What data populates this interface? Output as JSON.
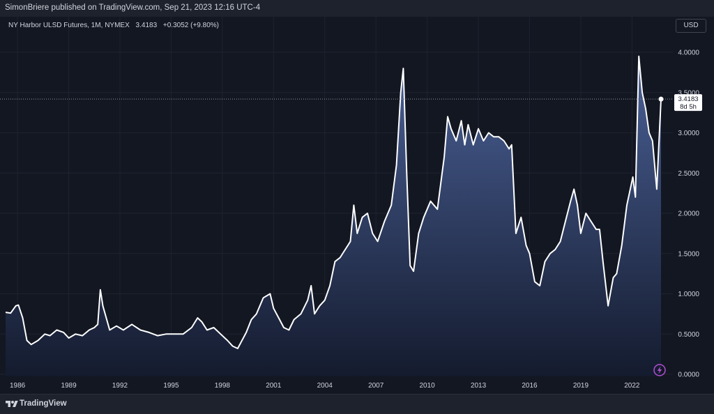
{
  "header": {
    "publisher_text": "SimonBriere published on TradingView.com, Sep 21, 2023 12:16 UTC-4"
  },
  "legend": {
    "symbol": "NY Harbor ULSD Futures, 1M, NYMEX",
    "last": "3.4183",
    "change": "+0.3052 (+9.80%)"
  },
  "price_scale": {
    "currency": "USD",
    "last_price_label": "3.4183",
    "countdown_label": "8d 5h"
  },
  "footer": {
    "brand": "TradingView"
  },
  "colors": {
    "background": "#131722",
    "line": "#ffffff",
    "fill_top": "#4a6096",
    "fill_bottom": "#141b2e",
    "grid": "#1f2330",
    "lightning": "#b44fd6"
  },
  "chart_data": {
    "type": "area",
    "title": "",
    "xlabel": "",
    "ylabel": "",
    "ylim": [
      0,
      4.2
    ],
    "x_range": [
      1985.3,
      2024.2
    ],
    "grid": true,
    "y_ticks": [
      "0.0000",
      "0.5000",
      "1.0000",
      "1.5000",
      "2.0000",
      "2.5000",
      "3.0000",
      "3.5000",
      "4.0000"
    ],
    "x_ticks": [
      "1986",
      "1989",
      "1992",
      "1995",
      "1998",
      "2001",
      "2004",
      "2007",
      "2010",
      "2013",
      "2016",
      "2019",
      "2022"
    ],
    "last_value": 3.4183,
    "series": [
      {
        "x": [
          1985.3,
          1985.6,
          1985.9,
          1986.05,
          1986.3,
          1986.55,
          1986.8,
          1987.2,
          1987.6,
          1987.9,
          1988.3,
          1988.7,
          1989.0,
          1989.4,
          1989.8,
          1990.2,
          1990.5,
          1990.7,
          1990.85,
          1991.0,
          1991.4,
          1991.8,
          1992.2,
          1992.7,
          1993.2,
          1993.7,
          1994.2,
          1994.7,
          1995.2,
          1995.7,
          1996.2,
          1996.55,
          1996.8,
          1997.1,
          1997.5,
          1997.9,
          1998.3,
          1998.6,
          1998.9,
          1999.1,
          1999.4,
          1999.7,
          2000.0,
          2000.4,
          2000.8,
          2001.0,
          2001.3,
          2001.6,
          2001.9,
          2002.2,
          2002.6,
          2003.0,
          2003.2,
          2003.4,
          2003.7,
          2004.0,
          2004.3,
          2004.6,
          2004.9,
          2005.2,
          2005.5,
          2005.7,
          2005.9,
          2006.2,
          2006.5,
          2006.8,
          2007.1,
          2007.5,
          2007.9,
          2008.2,
          2008.45,
          2008.6,
          2008.8,
          2009.0,
          2009.2,
          2009.5,
          2009.8,
          2010.2,
          2010.6,
          2011.0,
          2011.2,
          2011.4,
          2011.7,
          2012.0,
          2012.2,
          2012.4,
          2012.7,
          2013.0,
          2013.3,
          2013.6,
          2013.9,
          2014.2,
          2014.5,
          2014.8,
          2014.95,
          2015.2,
          2015.5,
          2015.8,
          2016.0,
          2016.3,
          2016.6,
          2016.9,
          2017.2,
          2017.5,
          2017.8,
          2018.1,
          2018.4,
          2018.6,
          2018.8,
          2019.0,
          2019.3,
          2019.6,
          2019.9,
          2020.1,
          2020.3,
          2020.6,
          2020.9,
          2021.1,
          2021.4,
          2021.7,
          2021.9,
          2022.05,
          2022.2,
          2022.4,
          2022.6,
          2022.8,
          2023.0,
          2023.2,
          2023.45,
          2023.7
        ],
        "values": [
          0.77,
          0.76,
          0.85,
          0.86,
          0.7,
          0.42,
          0.37,
          0.42,
          0.5,
          0.48,
          0.55,
          0.52,
          0.45,
          0.5,
          0.48,
          0.55,
          0.58,
          0.62,
          1.05,
          0.85,
          0.55,
          0.6,
          0.55,
          0.62,
          0.55,
          0.52,
          0.48,
          0.5,
          0.5,
          0.5,
          0.58,
          0.7,
          0.65,
          0.55,
          0.58,
          0.5,
          0.42,
          0.35,
          0.32,
          0.4,
          0.52,
          0.68,
          0.75,
          0.95,
          1.0,
          0.82,
          0.7,
          0.58,
          0.55,
          0.68,
          0.75,
          0.92,
          1.1,
          0.75,
          0.85,
          0.92,
          1.1,
          1.4,
          1.45,
          1.55,
          1.65,
          2.1,
          1.75,
          1.95,
          2.0,
          1.75,
          1.65,
          1.9,
          2.1,
          2.6,
          3.5,
          3.8,
          2.5,
          1.35,
          1.28,
          1.75,
          1.95,
          2.15,
          2.05,
          2.7,
          3.2,
          3.05,
          2.9,
          3.15,
          2.85,
          3.1,
          2.85,
          3.05,
          2.9,
          3.0,
          2.95,
          2.95,
          2.9,
          2.8,
          2.85,
          1.75,
          1.95,
          1.6,
          1.5,
          1.15,
          1.1,
          1.4,
          1.5,
          1.55,
          1.65,
          1.9,
          2.15,
          2.3,
          2.1,
          1.75,
          2.0,
          1.9,
          1.8,
          1.8,
          1.4,
          0.85,
          1.2,
          1.25,
          1.6,
          2.1,
          2.3,
          2.45,
          2.2,
          3.95,
          3.5,
          3.3,
          3.0,
          2.9,
          2.3,
          3.4183
        ]
      }
    ]
  }
}
